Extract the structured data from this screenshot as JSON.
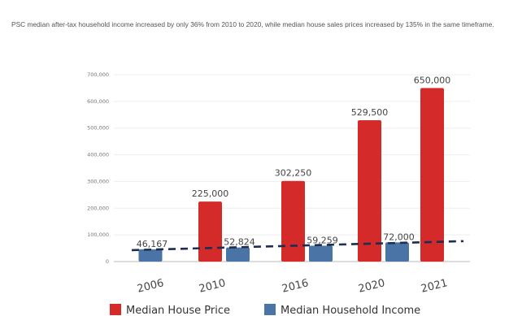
{
  "caption": "PSC median after-tax household income increased by only 36% from 2010 to 2020, while median house sales prices increased by 135% in the same timeframe.",
  "colors": {
    "house": "#d42a2a",
    "income": "#4a74a6",
    "trend": "#1d2e52"
  },
  "chart_data": {
    "type": "bar",
    "categories": [
      "2006",
      "2010",
      "2016",
      "2020",
      "2021"
    ],
    "series": [
      {
        "name": "Median House Price",
        "values": [
          null,
          225000,
          302250,
          529500,
          650000
        ],
        "labels": [
          "",
          "225,000",
          "302,250",
          "529,500",
          "650,000"
        ]
      },
      {
        "name": "Median Household Income",
        "values": [
          46167,
          52824,
          59259,
          72000,
          null
        ],
        "labels": [
          "46,167",
          "52,824",
          "59,259",
          "72,000",
          ""
        ]
      }
    ],
    "trendline": {
      "series": "Median Household Income",
      "style": "dashed"
    },
    "ylim": [
      0,
      700000
    ],
    "yticks": [
      "0",
      "100,000",
      "200,000",
      "300,000",
      "400,000",
      "500,000",
      "600,000",
      "700,000"
    ],
    "legend": "bottom",
    "grid": true
  }
}
